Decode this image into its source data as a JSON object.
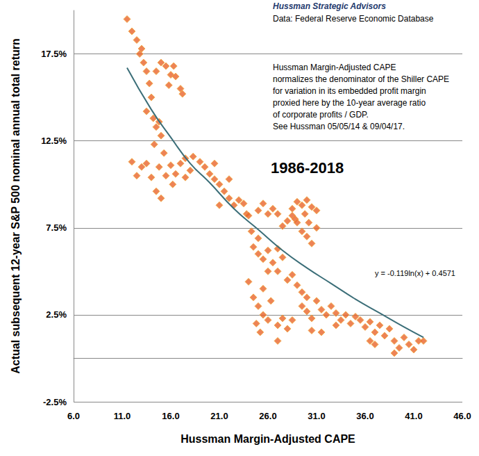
{
  "chart_data": {
    "type": "scatter",
    "title": "Hussman Strategic Advisors",
    "subtitle": "Data: Federal Reserve Economic Database",
    "annotations": {
      "note": [
        "Hussman Margin-Adjusted CAPE",
        "normalizes the denominator of the Shiller CAPE",
        "for variation in its embedded profit margin",
        "proxied here by the 10-year average ratio",
        "of corporate profits / GDP.",
        "See Hussman 05/05/14 & 09/04/17."
      ],
      "period": "1986-2018",
      "equation": "y = -0.119ln(x) + 0.4571"
    },
    "x_label": "Hussman Margin-Adjusted CAPE",
    "y_label": "Actual subsequent 12-year S&P 500 nominal annual total return",
    "xlim": [
      6,
      46
    ],
    "xticks": [
      {
        "value": 6,
        "label": "6.0"
      },
      {
        "value": 11,
        "label": "11.0"
      },
      {
        "value": 16,
        "label": "16.0"
      },
      {
        "value": 21,
        "label": "21.0"
      },
      {
        "value": 26,
        "label": "26.0"
      },
      {
        "value": 31,
        "label": "31.0"
      },
      {
        "value": 36,
        "label": "36.0"
      },
      {
        "value": 41,
        "label": "41.0"
      },
      {
        "value": 46,
        "label": "46.0"
      }
    ],
    "ylim": [
      -2.5,
      20
    ],
    "yticks": [
      {
        "value": -2.5,
        "label": "-2.5%"
      },
      {
        "value": 2.5,
        "label": "2.5%"
      },
      {
        "value": 7.5,
        "label": "7.5%"
      },
      {
        "value": 12.5,
        "label": "12.5%"
      },
      {
        "value": 17.5,
        "label": "17.5%"
      }
    ],
    "grid": true,
    "series": [
      {
        "type": "scatter",
        "color": "#e8642c",
        "marker": "diamond",
        "x": [
          11.5,
          12,
          12.5,
          13,
          12.8,
          13.2,
          13.5,
          13.8,
          14,
          13.5,
          14.2,
          14.8,
          14.5,
          15,
          14.3,
          14.5,
          15,
          15.5,
          16,
          16.3,
          16.5,
          15.8,
          17,
          17.2,
          12,
          12.5,
          13,
          13.5,
          14,
          14.5,
          14.8,
          15,
          15.3,
          15.5,
          16,
          16.2,
          16.5,
          17,
          17.5,
          17.5,
          18,
          18.3,
          19,
          19.5,
          20,
          20.5,
          20.5,
          21,
          21,
          21.5,
          22,
          22,
          22.5,
          23,
          23.5,
          23.8,
          24,
          24.3,
          25,
          25,
          25.5,
          26,
          26.5,
          27,
          27.5,
          28,
          28.5,
          28.5,
          28.8,
          29,
          29,
          29.5,
          29.5,
          29.8,
          30,
          30,
          30.2,
          30.5,
          30.5,
          31,
          31,
          24.5,
          25,
          25.5,
          26,
          26,
          26.5,
          27,
          27,
          27.5,
          28,
          28.5,
          29,
          29.5,
          30,
          24,
          24.5,
          24.8,
          25,
          25.2,
          25.5,
          25.5,
          26,
          26.3,
          27,
          27,
          27.5,
          28,
          28.5,
          29.5,
          30,
          30.5,
          30.5,
          31,
          31.5,
          31.5,
          32,
          32.5,
          33,
          33,
          33.5,
          34,
          34.5,
          35,
          35.5,
          36,
          36.5,
          36.5,
          37,
          37,
          37.5,
          38,
          38.5,
          39,
          39,
          39.5,
          40,
          40.5,
          41,
          41.5,
          42
        ],
        "values": [
          19.5,
          18.8,
          18.3,
          17.8,
          17.5,
          17,
          16.5,
          15.8,
          15,
          14.2,
          13.8,
          13.6,
          13.3,
          12.8,
          12.3,
          16.5,
          17,
          16.8,
          16.3,
          16.8,
          16.2,
          15.7,
          15.5,
          15.2,
          11.3,
          10.5,
          11,
          11.2,
          10.4,
          9.6,
          11,
          9.2,
          11.8,
          10.5,
          11.1,
          10,
          10.6,
          11.2,
          11.5,
          10.4,
          10.8,
          11.6,
          11.3,
          11,
          10.6,
          10.3,
          11.2,
          10,
          8.8,
          9.6,
          9.2,
          10.3,
          8.8,
          9.1,
          8.9,
          8.3,
          8.2,
          7.3,
          8.5,
          6.9,
          8.9,
          8.3,
          8.6,
          8.3,
          7.6,
          7.9,
          8.2,
          8.6,
          8,
          9,
          7.8,
          8.8,
          7.3,
          8.3,
          9.1,
          7,
          7.8,
          8.7,
          6.6,
          8.5,
          7.5,
          6.4,
          6,
          5.7,
          6.2,
          5,
          5.5,
          5,
          6.3,
          5.8,
          4.5,
          4.8,
          4.2,
          3.8,
          3.5,
          4.4,
          3.5,
          2,
          3,
          1.5,
          2.5,
          4,
          2.2,
          3.3,
          1.9,
          1,
          2.3,
          1.7,
          2.2,
          3,
          2.7,
          2.3,
          1.6,
          3.3,
          2.8,
          1.5,
          2.5,
          3,
          2.6,
          1.9,
          2.2,
          2.5,
          2,
          2.4,
          2.2,
          1.8,
          2.1,
          1,
          1.5,
          0.8,
          1.9,
          1.3,
          1.7,
          1,
          0.3,
          0.6,
          1.2,
          0.8,
          0.5,
          1,
          1
        ]
      },
      {
        "type": "line",
        "color": "#3b6e78",
        "line_style": "solid",
        "x": [
          11.5,
          14,
          16,
          18,
          20,
          22.5,
          25,
          27.5,
          30,
          32.5,
          35,
          37.5,
          40,
          42
        ],
        "values": [
          16.7,
          14.3,
          12.7,
          11.2,
          10.1,
          8.6,
          7.4,
          6.2,
          5.2,
          4.3,
          3.4,
          2.6,
          1.8,
          1.2
        ]
      }
    ]
  }
}
